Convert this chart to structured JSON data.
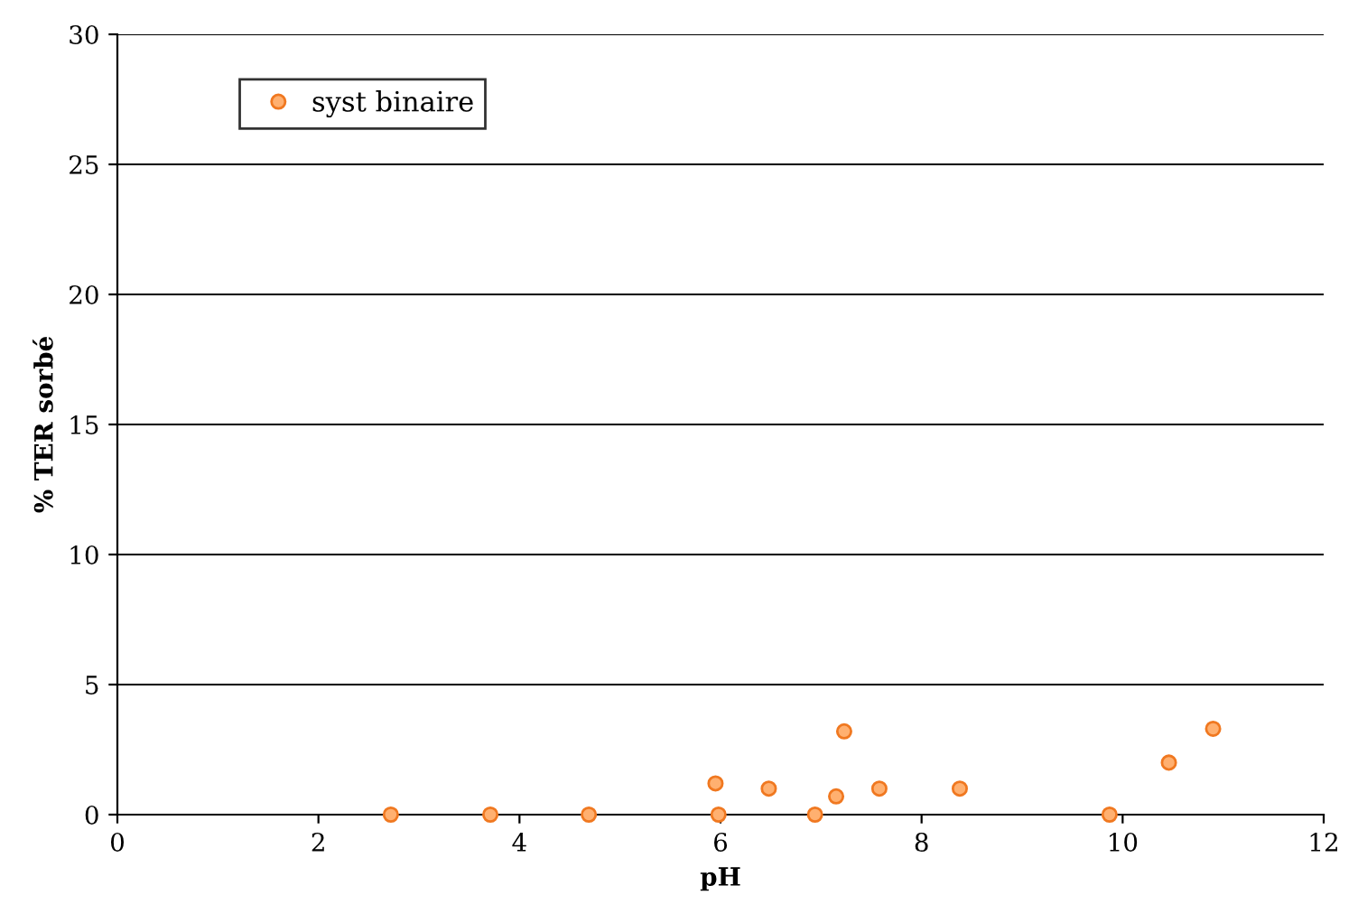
{
  "chart_data": {
    "type": "scatter",
    "xlabel": "pH",
    "ylabel": "% TER sorbé",
    "series": [
      {
        "name": "syst binaire",
        "color": "#ffb070",
        "x": [
          2.72,
          3.71,
          4.69,
          5.95,
          5.98,
          6.48,
          6.94,
          7.15,
          7.23,
          7.58,
          8.38,
          9.87,
          10.46,
          10.9
        ],
        "values": [
          0,
          0,
          0,
          1.2,
          0,
          1.0,
          0,
          0.7,
          3.2,
          1.0,
          1.0,
          0,
          2.0,
          3.3
        ]
      }
    ],
    "xlim": [
      0,
      12
    ],
    "xticks": [
      0,
      2,
      4,
      6,
      8,
      10,
      12
    ],
    "ylim": [
      0,
      30
    ],
    "yticks": [
      0,
      5,
      10,
      15,
      20,
      25,
      30
    ],
    "grid": "y",
    "legend": "top left",
    "marker": "circle"
  }
}
